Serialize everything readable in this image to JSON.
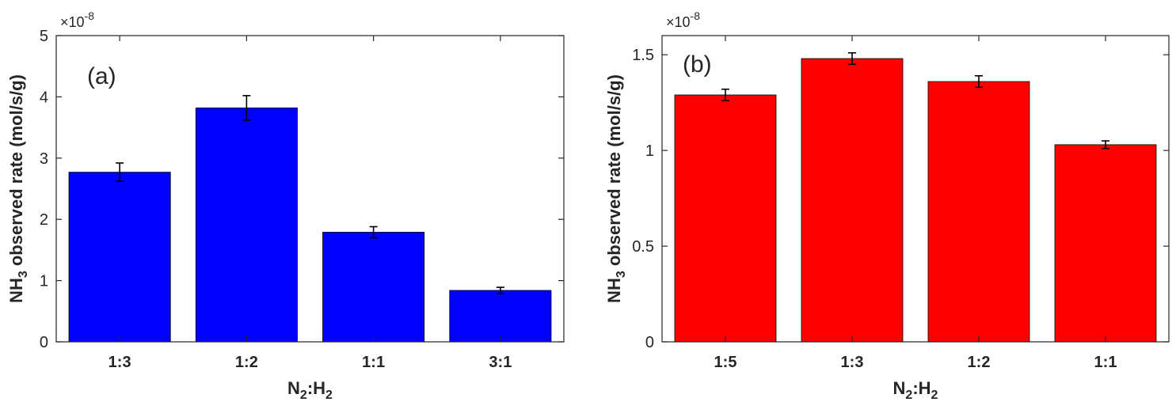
{
  "chart_data": [
    {
      "type": "bar",
      "panel_label": "(a)",
      "categories": [
        "1:3",
        "1:2",
        "1:1",
        "3:1"
      ],
      "values": [
        2.77e-08,
        3.82e-08,
        1.79e-08,
        8.4e-09
      ],
      "errors": [
        1.5e-09,
        2e-09,
        9e-10,
        5e-10
      ],
      "bar_color": "#0000ff",
      "ylim": [
        0,
        5e-08
      ],
      "yticks": [
        0,
        1e-08,
        2e-08,
        3e-08,
        4e-08,
        5e-08
      ],
      "ytick_labels": [
        "0",
        "1",
        "2",
        "3",
        "4",
        "5"
      ],
      "exponent": "-8",
      "ylabel_main": "NH",
      "ylabel_sub": "3",
      "ylabel_rest": " observed rate (mol/s/g)",
      "xlabel_parts": [
        "N",
        "2",
        ":H",
        "2"
      ],
      "grid": false
    },
    {
      "type": "bar",
      "panel_label": "(b)",
      "categories": [
        "1:5",
        "1:3",
        "1:2",
        "1:1"
      ],
      "values": [
        1.29e-08,
        1.48e-08,
        1.36e-08,
        1.03e-08
      ],
      "errors": [
        3e-10,
        3e-10,
        3e-10,
        2e-10
      ],
      "bar_color": "#ff0000",
      "ylim": [
        0,
        1.6e-08
      ],
      "yticks": [
        0,
        5e-09,
        1e-08,
        1.5e-08
      ],
      "ytick_labels": [
        "0",
        "0.5",
        "1",
        "1.5"
      ],
      "exponent": "-8",
      "ylabel_main": "NH",
      "ylabel_sub": "3",
      "ylabel_rest": " observed rate (mol/s/g)",
      "xlabel_parts": [
        "N",
        "2",
        ":H",
        "2"
      ],
      "grid": false
    }
  ]
}
